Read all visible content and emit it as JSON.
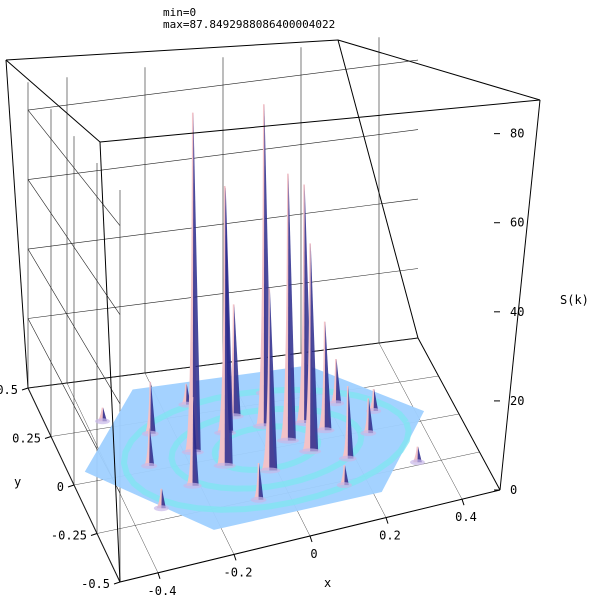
{
  "header": {
    "min_text": "min=0",
    "max_text": "max=87.8492988086400004022"
  },
  "chart_data": {
    "type": "surface3d",
    "xlabel": "x",
    "ylabel": "y",
    "zlabel": "S(k)",
    "xlim": [
      -0.5,
      0.5
    ],
    "ylim": [
      -0.5,
      0.5
    ],
    "zlim": [
      0,
      88
    ],
    "x_ticks": [
      -0.4,
      -0.2,
      0,
      0.2,
      0.4
    ],
    "x_tick_labels": [
      "-0.4",
      "-0.2",
      "0",
      "0.2",
      "0.4"
    ],
    "y_ticks": [
      0.5,
      0.25,
      0,
      -0.25,
      -0.5
    ],
    "y_tick_labels": [
      "0.5",
      "0.25",
      "0",
      "-0.25",
      "-0.5"
    ],
    "z_ticks": [
      0,
      20,
      40,
      60,
      80
    ],
    "z_tick_labels": [
      "0",
      "20",
      "40",
      "60",
      "80"
    ],
    "grid": true,
    "colors": {
      "base": "#9fd0ff",
      "ring": "#7fe6f0",
      "peak_light": "#f2c2c8",
      "peak_dark": "#2a2a8c",
      "box": "#000000",
      "grid": "#222222"
    },
    "peaks": [
      {
        "x": -0.18,
        "y": 0.05,
        "z": 87
      },
      {
        "x": 0.02,
        "y": 0.12,
        "z": 84
      },
      {
        "x": -0.12,
        "y": -0.05,
        "z": 70
      },
      {
        "x": -0.08,
        "y": 0.12,
        "z": 64
      },
      {
        "x": 0.06,
        "y": 0.02,
        "z": 68
      },
      {
        "x": 0.12,
        "y": 0.1,
        "z": 62
      },
      {
        "x": 0.1,
        "y": -0.06,
        "z": 52
      },
      {
        "x": -0.02,
        "y": -0.12,
        "z": 45
      },
      {
        "x": -0.04,
        "y": 0.2,
        "z": 30
      },
      {
        "x": 0.16,
        "y": 0.04,
        "z": 28
      },
      {
        "x": -0.22,
        "y": -0.12,
        "z": 22
      },
      {
        "x": 0.18,
        "y": -0.14,
        "z": 18
      },
      {
        "x": -0.26,
        "y": 0.18,
        "z": 14
      },
      {
        "x": 0.22,
        "y": 0.18,
        "z": 12
      },
      {
        "x": -0.3,
        "y": 0.02,
        "z": 10
      },
      {
        "x": 0.26,
        "y": -0.02,
        "z": 9
      },
      {
        "x": -0.08,
        "y": -0.26,
        "z": 9
      },
      {
        "x": 0.06,
        "y": 0.3,
        "z": 8
      },
      {
        "x": -0.14,
        "y": 0.3,
        "z": 6
      },
      {
        "x": 0.3,
        "y": 0.1,
        "z": 6
      },
      {
        "x": -0.32,
        "y": -0.2,
        "z": 5
      },
      {
        "x": 0.14,
        "y": -0.28,
        "z": 5
      },
      {
        "x": -0.36,
        "y": 0.28,
        "z": 4
      },
      {
        "x": 0.34,
        "y": -0.24,
        "z": 4
      }
    ]
  }
}
